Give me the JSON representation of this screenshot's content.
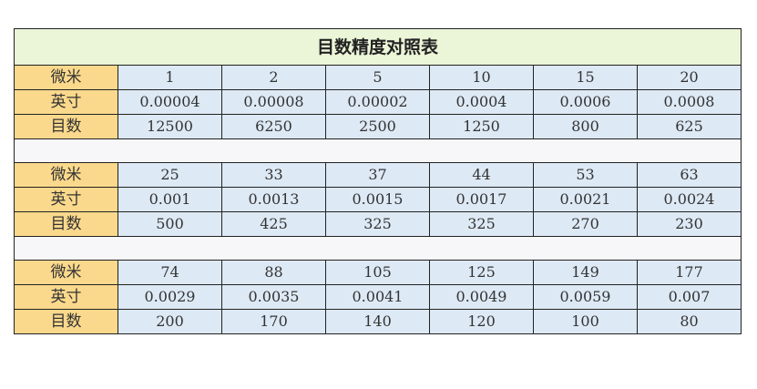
{
  "title": "目数精度对照表",
  "row_labels": [
    "微米",
    "英寸",
    "目数"
  ],
  "blocks": [
    {
      "micron": [
        "1",
        "2",
        "5",
        "10",
        "15",
        "20"
      ],
      "inch": [
        "0.00004",
        "0.00008",
        "0.00002",
        "0.0004",
        "0.0006",
        "0.0008"
      ],
      "mesh": [
        "12500",
        "6250",
        "2500",
        "1250",
        "800",
        "625"
      ]
    },
    {
      "micron": [
        "25",
        "33",
        "37",
        "44",
        "53",
        "63"
      ],
      "inch": [
        "0.001",
        "0.0013",
        "0.0015",
        "0.0017",
        "0.0021",
        "0.0024"
      ],
      "mesh": [
        "500",
        "425",
        "325",
        "325",
        "270",
        "230"
      ]
    },
    {
      "micron": [
        "74",
        "88",
        "105",
        "125",
        "149",
        "177"
      ],
      "inch": [
        "0.0029",
        "0.0035",
        "0.0041",
        "0.0049",
        "0.0059",
        "0.007"
      ],
      "mesh": [
        "200",
        "170",
        "140",
        "120",
        "100",
        "80"
      ]
    }
  ],
  "colors": {
    "title_bg": "#ebf6d8",
    "label_bg": "#fbd98c",
    "value_bg": "#dde9f5",
    "spacer_bg": "#f7f7fa"
  }
}
